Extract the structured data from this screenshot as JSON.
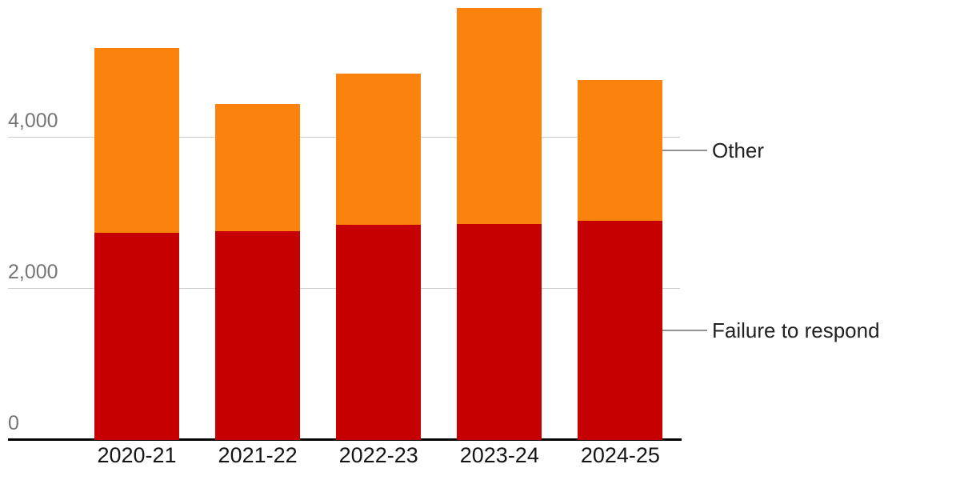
{
  "chart_data": {
    "type": "bar",
    "stacked": true,
    "title": "",
    "xlabel": "",
    "ylabel": "",
    "categories": [
      "2020-21",
      "2021-22",
      "2022-23",
      "2023-24",
      "2024-25"
    ],
    "series": [
      {
        "name": "Failure to respond",
        "color": "#c60000",
        "values": [
          2740,
          2760,
          2840,
          2850,
          2900
        ]
      },
      {
        "name": "Other",
        "color": "#fb820c",
        "values": [
          2440,
          1680,
          2000,
          2860,
          1860
        ]
      }
    ],
    "yticks": [
      0,
      2000,
      4000
    ],
    "ytick_labels": [
      "0",
      "2,000",
      "4,000"
    ],
    "ylim": [
      0,
      5800
    ],
    "grid": true,
    "legend_position": "right-annotations",
    "annotations": [
      {
        "label": "Other",
        "series": "Other"
      },
      {
        "label": "Failure to respond",
        "series": "Failure to respond"
      }
    ]
  },
  "colors": {
    "gridline": "#cbcbcb",
    "axis_line": "#000000",
    "ytick_text": "#757575",
    "xtick_text": "#141414",
    "annotation_text": "#222222",
    "connector_line": "#919191",
    "background": "#ffffff"
  }
}
